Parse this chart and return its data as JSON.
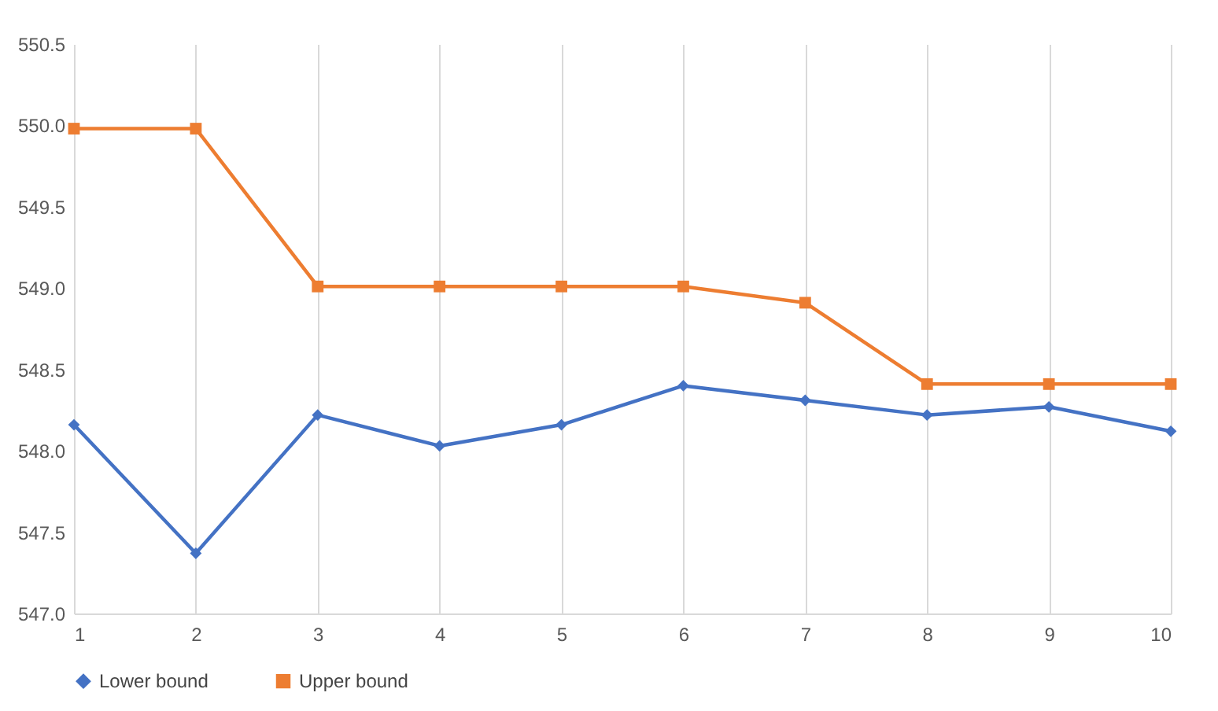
{
  "chart_data": {
    "type": "line",
    "x": [
      1,
      2,
      3,
      4,
      5,
      6,
      7,
      8,
      9,
      10
    ],
    "series": [
      {
        "name": "Lower bound",
        "color": "#4472c4",
        "marker": "diamond",
        "values": [
          548.16,
          547.37,
          548.22,
          548.03,
          548.16,
          548.4,
          548.31,
          548.22,
          548.27,
          548.12
        ]
      },
      {
        "name": "Upper bound",
        "color": "#ed7d31",
        "marker": "square",
        "values": [
          549.98,
          549.98,
          549.01,
          549.01,
          549.01,
          549.01,
          548.91,
          548.41,
          548.41,
          548.41
        ]
      }
    ],
    "xlim": [
      1,
      10
    ],
    "xticks": [
      1,
      2,
      3,
      4,
      5,
      6,
      7,
      8,
      9,
      10
    ],
    "ylim": [
      547,
      550.5
    ],
    "yticks": [
      {
        "value": 547,
        "label": "547.0"
      },
      {
        "value": 547.5,
        "label": "547.5"
      },
      {
        "value": 548,
        "label": "548.0"
      },
      {
        "value": 548.5,
        "label": "548.5"
      },
      {
        "value": 549,
        "label": "549.0"
      },
      {
        "value": 549.5,
        "label": "549.5"
      },
      {
        "value": 550,
        "label": "550.0"
      },
      {
        "value": 550.5,
        "label": "550.5"
      }
    ],
    "grid": "x",
    "legend": "bottom",
    "line_style": "solid"
  }
}
